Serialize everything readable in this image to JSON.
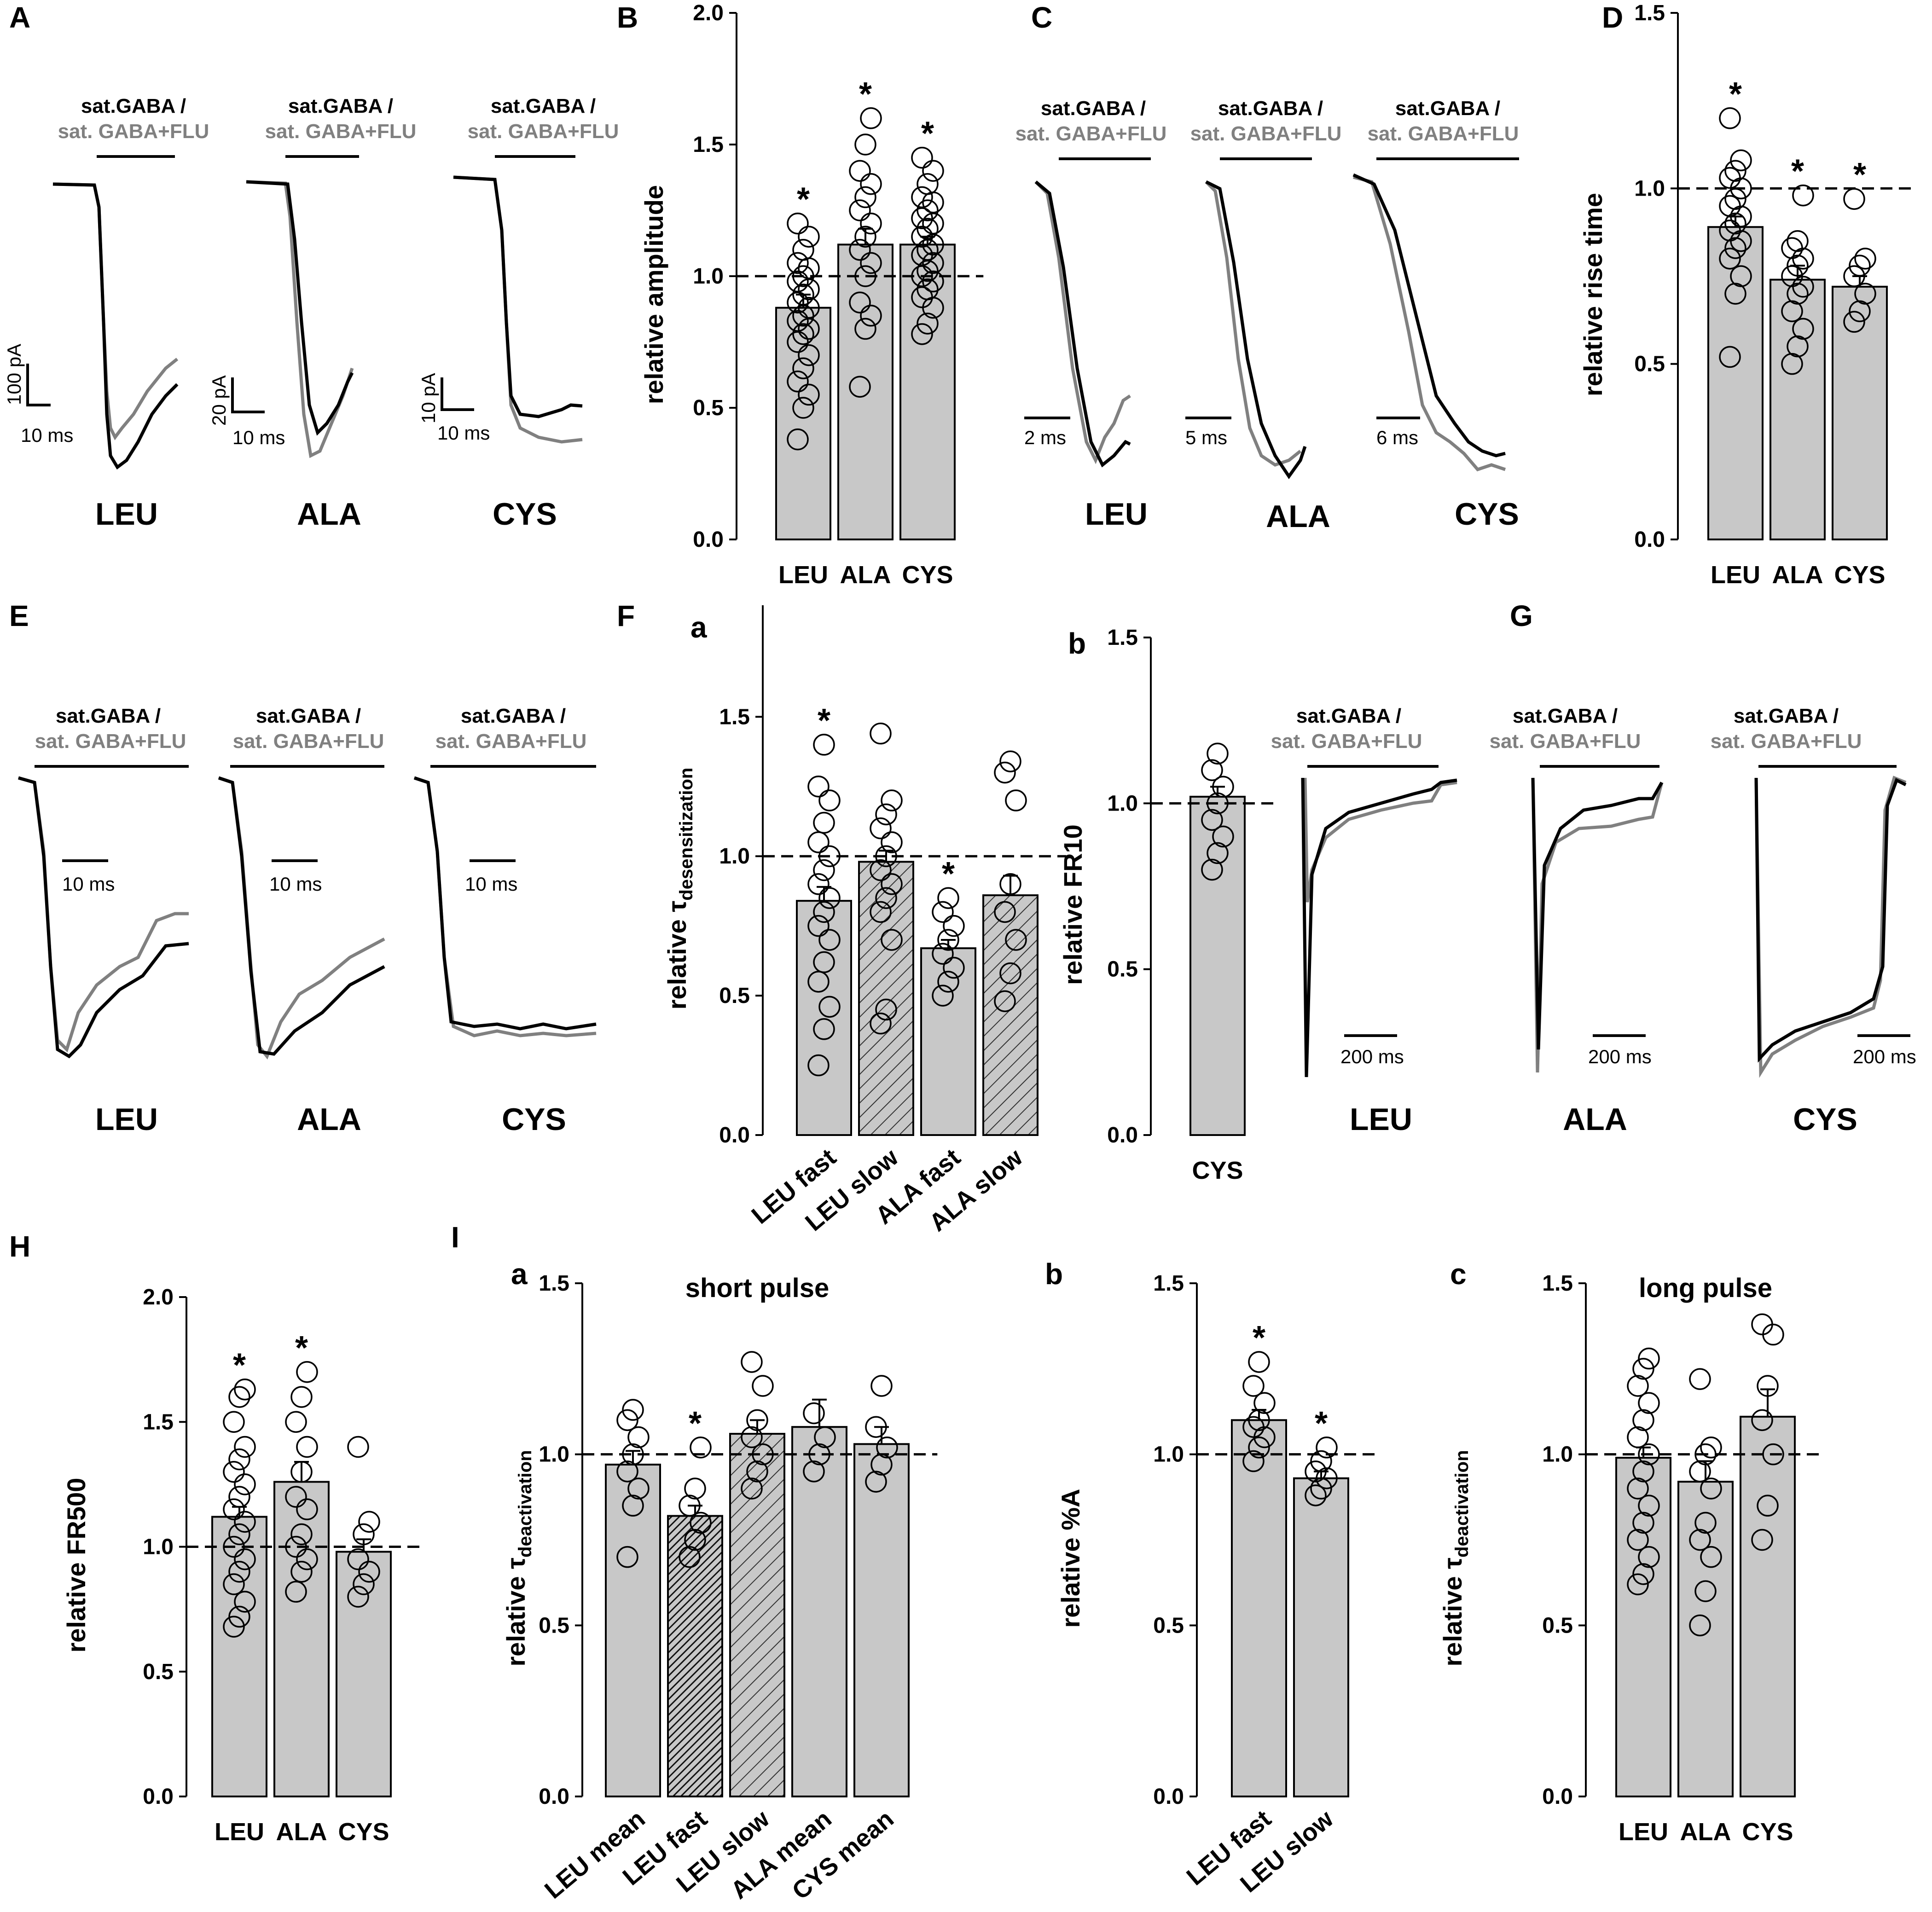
{
  "panel_labels": {
    "A": "A",
    "B": "B",
    "C": "C",
    "D": "D",
    "E": "E",
    "F": "F",
    "G": "G",
    "H": "H",
    "I": "I",
    "Fa": "a",
    "Fb": "b",
    "Ia": "a",
    "Ib": "b",
    "Ic": "c"
  },
  "legend": {
    "line1": "sat.GABA /",
    "line2": "sat. GABA+FLU"
  },
  "colors": {
    "control": "#000000",
    "flu": "#808080",
    "bar": "#c8c8c8"
  },
  "traces": {
    "A": {
      "labels": [
        "LEU",
        "ALA",
        "CYS"
      ],
      "scales": [
        {
          "y": "100 pA",
          "x": "10 ms"
        },
        {
          "y": "20 pA",
          "x": "10 ms"
        },
        {
          "y": "10 pA",
          "x": "10 ms"
        }
      ]
    },
    "C": {
      "labels": [
        "LEU",
        "ALA",
        "CYS"
      ],
      "scales": [
        "2 ms",
        "5 ms",
        "6 ms"
      ]
    },
    "E": {
      "labels": [
        "LEU",
        "ALA",
        "CYS"
      ],
      "scales": [
        "10 ms",
        "10 ms",
        "10 ms"
      ]
    },
    "Fb": {
      "label": "LEU",
      "scale": "200 ms"
    },
    "G": {
      "labels": [
        "ALA",
        "CYS"
      ],
      "scales": [
        "200 ms",
        "200 ms"
      ]
    }
  },
  "chart_data": [
    {
      "id": "B",
      "type": "bar",
      "ylabel": "relative amplitude",
      "ylim": [
        0,
        2
      ],
      "yticks": [
        "0.0",
        "0.5",
        "1.0",
        "1.5",
        "2.0"
      ],
      "categories": [
        "LEU",
        "ALA",
        "CYS"
      ],
      "values": [
        0.88,
        1.12,
        1.12
      ],
      "errors": [
        0.05,
        0.06,
        0.03
      ],
      "significant": [
        true,
        true,
        true
      ],
      "star": "*",
      "reference_line": 1.0,
      "points": [
        [
          0.38,
          0.5,
          0.55,
          0.6,
          0.65,
          0.7,
          0.75,
          0.78,
          0.8,
          0.83,
          0.85,
          0.88,
          0.9,
          0.93,
          0.95,
          0.98,
          1.0,
          1.03,
          1.05,
          1.1,
          1.15,
          1.2
        ],
        [
          0.58,
          0.8,
          0.85,
          0.9,
          1.0,
          1.05,
          1.1,
          1.15,
          1.2,
          1.25,
          1.3,
          1.35,
          1.4,
          1.5,
          1.6
        ],
        [
          0.78,
          0.82,
          0.88,
          0.92,
          0.95,
          0.98,
          1.0,
          1.02,
          1.05,
          1.08,
          1.1,
          1.12,
          1.15,
          1.18,
          1.2,
          1.22,
          1.25,
          1.28,
          1.3,
          1.35,
          1.4,
          1.45
        ]
      ]
    },
    {
      "id": "D",
      "type": "bar",
      "ylabel": "relative rise time",
      "ylim": [
        0,
        1.5
      ],
      "yticks": [
        "0.0",
        "0.5",
        "1.0",
        "1.5"
      ],
      "categories": [
        "LEU",
        "ALA",
        "CYS"
      ],
      "values": [
        0.89,
        0.74,
        0.72
      ],
      "errors": [
        0.03,
        0.04,
        0.03
      ],
      "significant": [
        true,
        true,
        true
      ],
      "star": "*",
      "reference_line": 1.0,
      "points": [
        [
          0.52,
          0.7,
          0.75,
          0.8,
          0.83,
          0.85,
          0.88,
          0.9,
          0.92,
          0.95,
          0.97,
          1.0,
          1.03,
          1.05,
          1.08,
          1.2
        ],
        [
          0.5,
          0.55,
          0.6,
          0.65,
          0.7,
          0.72,
          0.75,
          0.78,
          0.8,
          0.83,
          0.85,
          0.98
        ],
        [
          0.62,
          0.65,
          0.7,
          0.75,
          0.78,
          0.8,
          0.97
        ]
      ]
    },
    {
      "id": "Fa",
      "type": "bar",
      "ylabel": "relative τdesensitization",
      "ylim": [
        0,
        1.9
      ],
      "yticks": [
        "0.0",
        "0.5",
        "1.0",
        "1.5"
      ],
      "categories": [
        "LEU fast",
        "LEU slow",
        "ALA fast",
        "ALA slow"
      ],
      "values": [
        0.84,
        0.98,
        0.67,
        0.86
      ],
      "errors": [
        0.05,
        0.04,
        0.03,
        0.07
      ],
      "hatched": [
        false,
        true,
        false,
        true
      ],
      "significant": [
        true,
        false,
        true,
        false
      ],
      "star": "*",
      "reference_line": 1.0,
      "points": [
        [
          0.25,
          0.38,
          0.46,
          0.55,
          0.62,
          0.7,
          0.75,
          0.8,
          0.85,
          0.9,
          0.95,
          1.0,
          1.05,
          1.12,
          1.2,
          1.25,
          1.4
        ],
        [
          0.4,
          0.45,
          0.7,
          0.8,
          0.85,
          0.9,
          0.95,
          1.0,
          1.05,
          1.1,
          1.15,
          1.2,
          1.44
        ],
        [
          0.5,
          0.55,
          0.6,
          0.65,
          0.7,
          0.75,
          0.8,
          0.85
        ],
        [
          0.48,
          0.58,
          0.7,
          0.8,
          0.9,
          1.2,
          1.3,
          1.34
        ]
      ]
    },
    {
      "id": "Fb",
      "type": "bar",
      "ylabel": "relative FR10",
      "ylim": [
        0,
        1.5
      ],
      "yticks": [
        "0.0",
        "0.5",
        "1.0",
        "1.5"
      ],
      "categories": [
        "CYS"
      ],
      "values": [
        1.02
      ],
      "errors": [
        0.03
      ],
      "reference_line": 1.0,
      "points": [
        [
          0.8,
          0.85,
          0.9,
          0.95,
          1.0,
          1.05,
          1.1,
          1.15
        ]
      ]
    },
    {
      "id": "H",
      "type": "bar",
      "ylabel": "relative FR500",
      "ylim": [
        0,
        2
      ],
      "yticks": [
        "0.0",
        "0.5",
        "1.0",
        "1.5",
        "2.0"
      ],
      "categories": [
        "LEU",
        "ALA",
        "CYS"
      ],
      "values": [
        1.12,
        1.26,
        0.98
      ],
      "errors": [
        0.04,
        0.08,
        0.05
      ],
      "significant": [
        true,
        true,
        false
      ],
      "star": "*",
      "reference_line": 1.0,
      "points": [
        [
          0.68,
          0.72,
          0.78,
          0.85,
          0.9,
          0.95,
          1.0,
          1.05,
          1.1,
          1.15,
          1.2,
          1.25,
          1.3,
          1.35,
          1.4,
          1.5,
          1.6,
          1.63
        ],
        [
          0.82,
          0.9,
          0.95,
          1.0,
          1.05,
          1.15,
          1.2,
          1.3,
          1.4,
          1.5,
          1.6,
          1.7
        ],
        [
          0.8,
          0.85,
          0.9,
          0.95,
          1.05,
          1.1,
          1.4
        ]
      ]
    },
    {
      "id": "Ia",
      "type": "bar",
      "title": "short pulse",
      "ylabel": "relative τdeactivation",
      "ylim": [
        0,
        1.5
      ],
      "yticks": [
        "0.0",
        "0.5",
        "1.0",
        "1.5"
      ],
      "categories": [
        "LEU mean",
        "LEU fast",
        "LEU slow",
        "ALA mean",
        "CYS mean"
      ],
      "values": [
        0.97,
        0.82,
        1.06,
        1.08,
        1.03
      ],
      "errors": [
        0.04,
        0.03,
        0.04,
        0.08,
        0.05
      ],
      "hatched": [
        false,
        "dark",
        true,
        false,
        false
      ],
      "significant": [
        false,
        true,
        false,
        false,
        false
      ],
      "star": "*",
      "reference_line": 1.0,
      "points": [
        [
          0.7,
          0.85,
          0.9,
          0.95,
          1.0,
          1.05,
          1.1,
          1.13
        ],
        [
          0.7,
          0.75,
          0.8,
          0.85,
          0.9,
          1.02
        ],
        [
          0.9,
          0.95,
          1.0,
          1.05,
          1.1,
          1.2,
          1.27
        ],
        [
          0.95,
          1.0,
          1.05,
          1.12
        ],
        [
          0.92,
          0.97,
          1.02,
          1.08,
          1.2
        ]
      ]
    },
    {
      "id": "Ib",
      "type": "bar",
      "ylabel": "relative %A",
      "ylim": [
        0,
        1.5
      ],
      "yticks": [
        "0.0",
        "0.5",
        "1.0",
        "1.5"
      ],
      "categories": [
        "LEU fast",
        "LEU slow"
      ],
      "values": [
        1.1,
        0.93
      ],
      "errors": [
        0.03,
        0.02
      ],
      "significant": [
        true,
        true
      ],
      "star": "*",
      "reference_line": 1.0,
      "points": [
        [
          0.98,
          1.02,
          1.05,
          1.08,
          1.1,
          1.15,
          1.2,
          1.27
        ],
        [
          0.88,
          0.9,
          0.93,
          0.95,
          0.98,
          1.02
        ]
      ]
    },
    {
      "id": "Ic",
      "type": "bar",
      "title": "long pulse",
      "ylabel": "relative τdeactivation",
      "ylim": [
        0,
        1.5
      ],
      "yticks": [
        "0.0",
        "0.5",
        "1.0",
        "1.5"
      ],
      "categories": [
        "LEU",
        "ALA",
        "CYS"
      ],
      "values": [
        0.99,
        0.92,
        1.11
      ],
      "errors": [
        0.03,
        0.06,
        0.08
      ],
      "reference_line": 1.0,
      "points": [
        [
          0.62,
          0.65,
          0.7,
          0.75,
          0.8,
          0.85,
          0.9,
          0.95,
          1.0,
          1.05,
          1.1,
          1.15,
          1.2,
          1.25,
          1.28
        ],
        [
          0.5,
          0.6,
          0.7,
          0.75,
          0.8,
          0.9,
          0.95,
          1.0,
          1.02,
          1.22
        ],
        [
          0.75,
          0.85,
          1.0,
          1.1,
          1.2,
          1.35,
          1.38
        ]
      ]
    }
  ]
}
